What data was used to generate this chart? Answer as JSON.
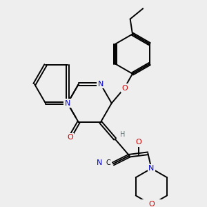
{
  "background_color": "#eeeeee",
  "bond_color": "#000000",
  "atom_colors": {
    "N": "#0000cc",
    "O": "#cc0000",
    "C": "#000000",
    "H": "#5a7a7a"
  },
  "lw": 1.4,
  "dbl_off": 0.055,
  "fs": 7.0
}
